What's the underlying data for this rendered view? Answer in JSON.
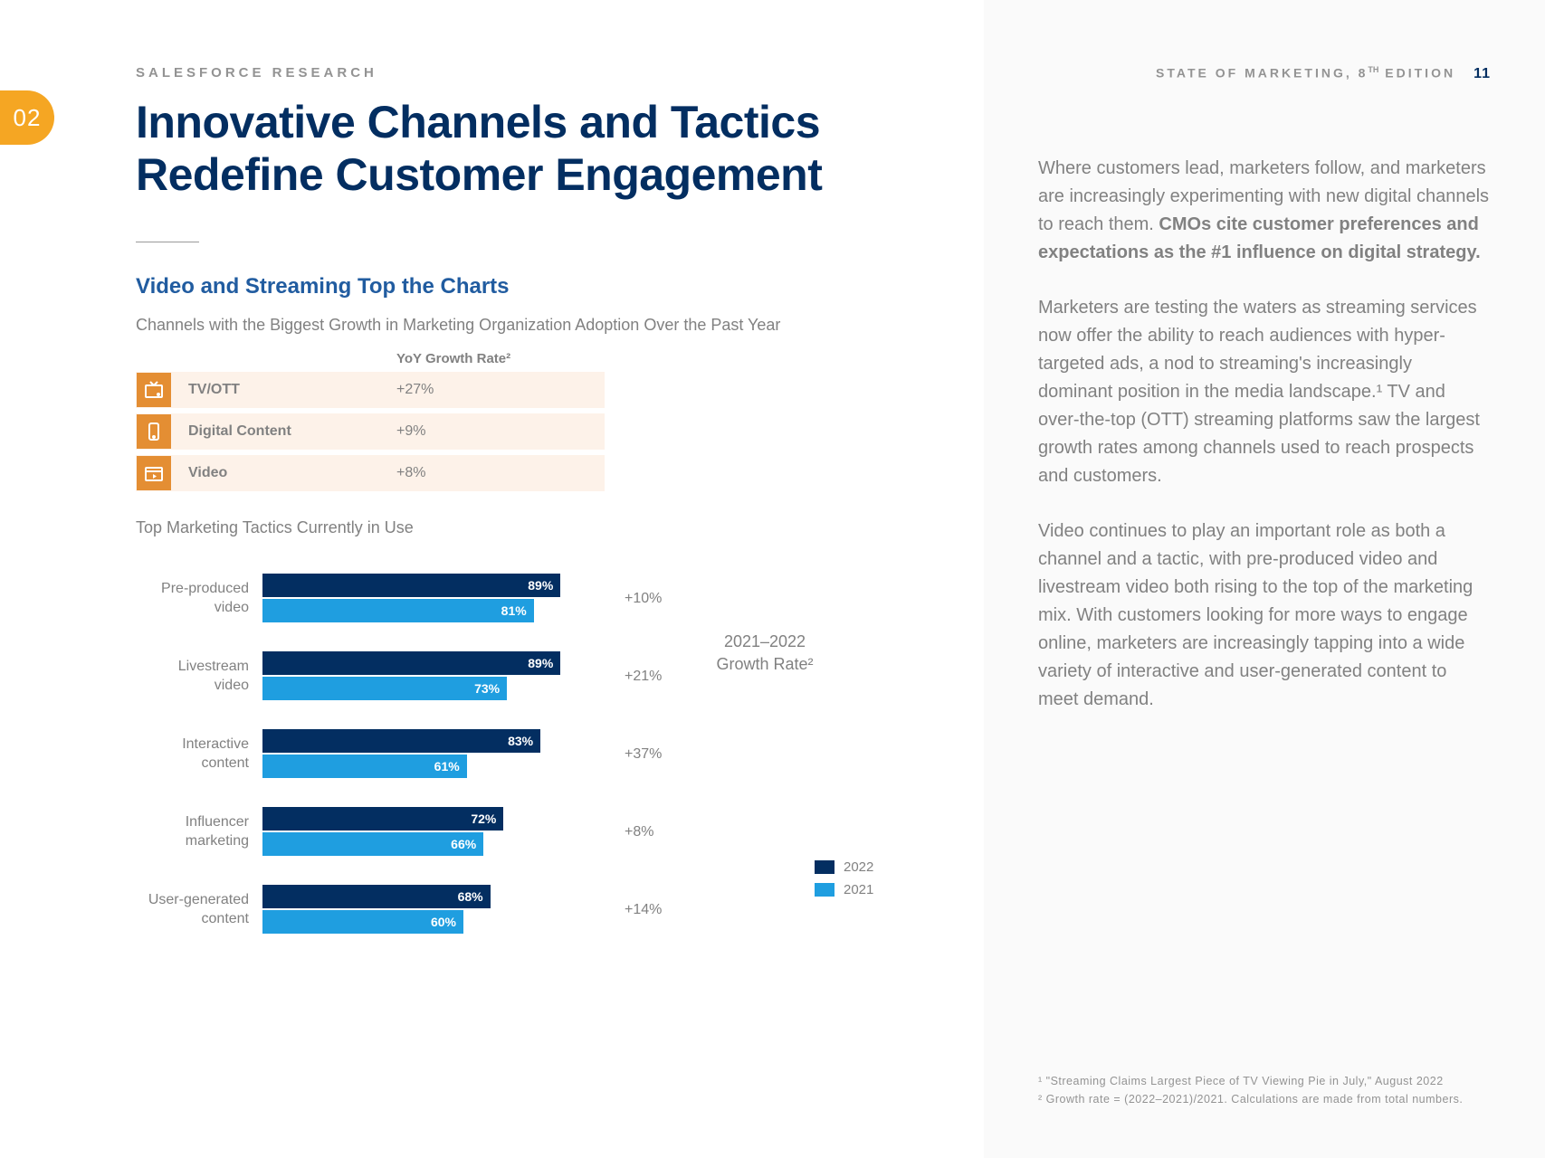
{
  "badge": "02",
  "header": {
    "eyebrow": "SALESFORCE RESEARCH",
    "right_label_pre": "STATE OF MARKETING, 8",
    "right_label_sup": "TH",
    "right_label_post": " EDITION",
    "page_number": "11"
  },
  "title": "Innovative Channels and Tactics Redefine Customer Engagement",
  "section": {
    "heading": "Video and Streaming Top the Charts",
    "caption": "Channels with the Biggest Growth in Marketing Organization Adoption Over the Past Year",
    "yoy_label": "YoY Growth Rate²"
  },
  "channels": [
    {
      "label": "TV/OTT",
      "value": "+27%",
      "icon": "tv-icon"
    },
    {
      "label": "Digital Content",
      "value": "+9%",
      "icon": "phone-icon"
    },
    {
      "label": "Video",
      "value": "+8%",
      "icon": "video-icon"
    }
  ],
  "tactics": {
    "caption": "Top Marketing Tactics Currently in Use",
    "growth_header": "2021–2022 Growth Rate²",
    "legend_2022": "2022",
    "legend_2021": "2021",
    "color_2022": "#032e61",
    "color_2021": "#1f9ee0",
    "max": 100,
    "rows": [
      {
        "label": "Pre-produced video",
        "v2022": 89,
        "v2021": 81,
        "growth": "+10%"
      },
      {
        "label": "Livestream video",
        "v2022": 89,
        "v2021": 73,
        "growth": "+21%"
      },
      {
        "label": "Interactive content",
        "v2022": 83,
        "v2021": 61,
        "growth": "+37%"
      },
      {
        "label": "Influencer marketing",
        "v2022": 72,
        "v2021": 66,
        "growth": "+8%"
      },
      {
        "label": "User-generated content",
        "v2022": 68,
        "v2021": 60,
        "growth": "+14%"
      }
    ]
  },
  "body": {
    "p1_pre": "Where customers lead, marketers follow, and marketers are increasingly experimenting with new digital channels to reach them. ",
    "p1_bold": "CMOs cite customer preferences and expectations as the #1 influence on digital strategy.",
    "p2": "Marketers are testing the waters as streaming services now offer the ability to reach audiences with hyper-targeted ads, a nod to streaming's increasingly dominant position in the media landscape.¹ TV and over-the-top (OTT) streaming platforms saw the largest growth rates among channels used to reach prospects and customers.",
    "p3": "Video continues to play an important role as both a channel and a tactic, with pre-produced video and livestream video both rising to the top of the marketing mix. With customers looking for more ways to engage online, marketers are increasingly tapping into a wide variety of interactive and user-generated content to meet demand."
  },
  "footnotes": {
    "f1": "¹ \"Streaming Claims Largest Piece of TV Viewing Pie in July,\" August 2022",
    "f2": "² Growth rate = (2022–2021)/2021. Calculations are made from total numbers."
  }
}
